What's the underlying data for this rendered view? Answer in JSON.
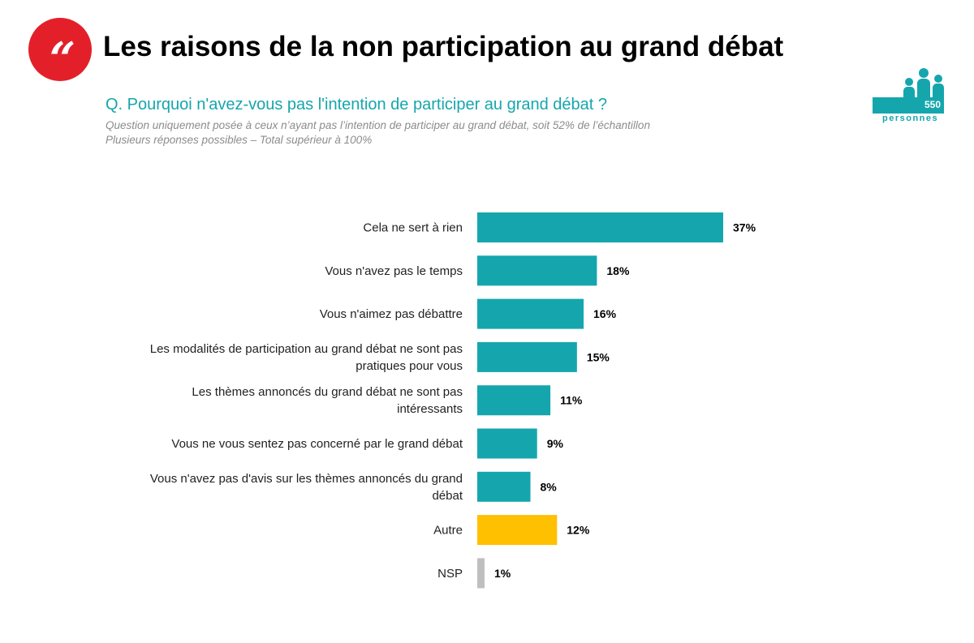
{
  "header": {
    "quote_mark": "“",
    "title": "Les raisons de la non participation au grand débat",
    "question": "Q.  Pourquoi n'avez-vous pas l'intention de participer au grand débat ?",
    "note_1": "Question uniquement posée à ceux n’ayant pas l’intention de participer au grand débat, soit 52% de l’échantillon",
    "note_2": "Plusieurs réponses possibles – Total supérieur à 100%"
  },
  "sample": {
    "count": "550",
    "label": "personnes"
  },
  "colors": {
    "accent": "#e3202a",
    "teal": "#15a6ad",
    "gold": "#ffc000",
    "grey": "#bfbfbf"
  },
  "chart_data": {
    "type": "bar",
    "orientation": "horizontal",
    "title": "",
    "xlabel": "",
    "ylabel": "",
    "xlim": [
      0,
      37
    ],
    "unit": "%",
    "categories": [
      [
        "Cela ne sert à rien"
      ],
      [
        "Vous n'avez pas le temps"
      ],
      [
        "Vous n'aimez pas débattre"
      ],
      [
        "Les modalités de participation au grand débat ne sont pas",
        "pratiques pour vous"
      ],
      [
        "Les thèmes annoncés du grand débat ne sont pas",
        "intéressants"
      ],
      [
        "Vous ne vous sentez pas concerné par le grand débat"
      ],
      [
        "Vous n'avez pas d'avis sur les thèmes annoncés du grand",
        "débat"
      ],
      [
        "Autre"
      ],
      [
        "NSP"
      ]
    ],
    "values": [
      37,
      18,
      16,
      15,
      11,
      9,
      8,
      12,
      1
    ],
    "value_labels": [
      "37%",
      "18%",
      "16%",
      "15%",
      "11%",
      "9%",
      "8%",
      "12%",
      "1%"
    ],
    "bar_colors": [
      "#15a6ad",
      "#15a6ad",
      "#15a6ad",
      "#15a6ad",
      "#15a6ad",
      "#15a6ad",
      "#15a6ad",
      "#ffc000",
      "#bfbfbf"
    ]
  }
}
